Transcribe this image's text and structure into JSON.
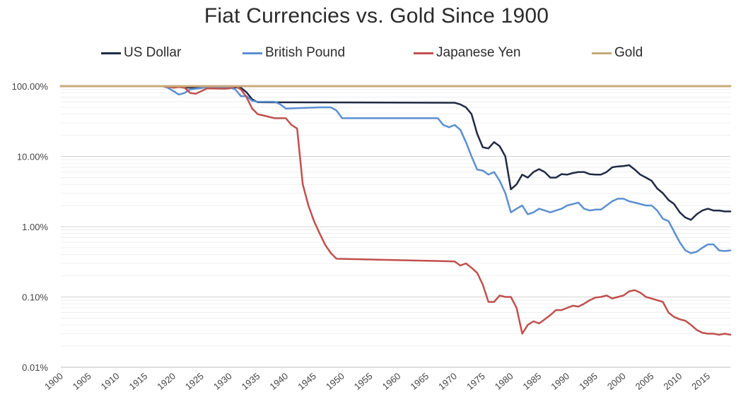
{
  "chart_data": {
    "type": "line",
    "title": "Fiat Currencies vs. Gold Since 1900",
    "xlabel": "",
    "ylabel": "",
    "y_scale": "log",
    "ylim": [
      0.01,
      100
    ],
    "xlim": [
      1900,
      2019
    ],
    "y_ticks": [
      {
        "value": 100,
        "label": "100.00%"
      },
      {
        "value": 10,
        "label": "10.00%"
      },
      {
        "value": 1,
        "label": "1.00%"
      },
      {
        "value": 0.1,
        "label": "0.10%"
      },
      {
        "value": 0.01,
        "label": "0.01%"
      }
    ],
    "x_ticks": [
      1900,
      1905,
      1910,
      1915,
      1920,
      1925,
      1930,
      1935,
      1940,
      1945,
      1950,
      1955,
      1960,
      1965,
      1970,
      1975,
      1980,
      1985,
      1990,
      1995,
      2000,
      2005,
      2010,
      2015
    ],
    "grid": "horizontal",
    "legend_position": "top",
    "series": [
      {
        "name": "US Dollar",
        "color": "#1f2a44",
        "x": [
          1900,
          1918,
          1919,
          1921,
          1922,
          1924,
          1926,
          1930,
          1932,
          1933,
          1934,
          1935,
          1970,
          1971,
          1972,
          1973,
          1974,
          1975,
          1976,
          1977,
          1978,
          1979,
          1980,
          1981,
          1982,
          1983,
          1984,
          1985,
          1986,
          1987,
          1988,
          1989,
          1990,
          1991,
          1992,
          1993,
          1994,
          1995,
          1996,
          1997,
          1998,
          1999,
          2000,
          2001,
          2002,
          2003,
          2004,
          2005,
          2006,
          2007,
          2008,
          2009,
          2010,
          2011,
          2012,
          2013,
          2014,
          2015,
          2016,
          2017,
          2018,
          2019
        ],
        "y": [
          100,
          100,
          100,
          98,
          95,
          96,
          97,
          97,
          95,
          82,
          65,
          59,
          58,
          55,
          50,
          40,
          21,
          13.5,
          13,
          16,
          14,
          10,
          3.4,
          4,
          5.5,
          5,
          6,
          6.6,
          6,
          5,
          5,
          5.6,
          5.5,
          5.8,
          6,
          6,
          5.6,
          5.5,
          5.5,
          6,
          7,
          7.2,
          7.3,
          7.5,
          6.5,
          5.5,
          5,
          4.5,
          3.5,
          3,
          2.4,
          2.1,
          1.6,
          1.35,
          1.25,
          1.5,
          1.7,
          1.8,
          1.7,
          1.7,
          1.65,
          1.65
        ]
      },
      {
        "name": "British Pound",
        "color": "#5b8fd1",
        "x": [
          1900,
          1918,
          1919,
          1920,
          1921,
          1922,
          1923,
          1924,
          1925,
          1926,
          1929,
          1930,
          1931,
          1932,
          1933,
          1934,
          1935,
          1938,
          1939,
          1940,
          1946,
          1948,
          1949,
          1950,
          1967,
          1968,
          1969,
          1970,
          1971,
          1972,
          1973,
          1974,
          1975,
          1976,
          1977,
          1978,
          1979,
          1980,
          1981,
          1982,
          1983,
          1984,
          1985,
          1986,
          1987,
          1988,
          1989,
          1990,
          1991,
          1992,
          1993,
          1994,
          1995,
          1996,
          1997,
          1998,
          1999,
          2000,
          2001,
          2002,
          2003,
          2004,
          2005,
          2006,
          2007,
          2008,
          2009,
          2010,
          2011,
          2012,
          2013,
          2014,
          2015,
          2016,
          2017,
          2018,
          2019
        ],
        "y": [
          100,
          100,
          95,
          85,
          76,
          80,
          90,
          92,
          94,
          97,
          97,
          96,
          90,
          72,
          72,
          62,
          60,
          60,
          55,
          48,
          50,
          50,
          45,
          35,
          35,
          28,
          26,
          28,
          24,
          16,
          10,
          6.5,
          6.3,
          5.5,
          6,
          4.5,
          3,
          1.6,
          1.8,
          2,
          1.5,
          1.6,
          1.8,
          1.7,
          1.6,
          1.7,
          1.8,
          2,
          2.1,
          2.2,
          1.8,
          1.7,
          1.75,
          1.75,
          2,
          2.3,
          2.5,
          2.5,
          2.3,
          2.2,
          2.1,
          2.0,
          2.0,
          1.7,
          1.3,
          1.2,
          0.85,
          0.6,
          0.46,
          0.42,
          0.44,
          0.5,
          0.56,
          0.56,
          0.46,
          0.45,
          0.46
        ]
      },
      {
        "name": "Japanese Yen",
        "color": "#c0504d",
        "x": [
          1900,
          1917,
          1918,
          1919,
          1920,
          1921,
          1922,
          1923,
          1924,
          1925,
          1926,
          1929,
          1930,
          1931,
          1932,
          1933,
          1934,
          1935,
          1938,
          1940,
          1941,
          1942,
          1943,
          1944,
          1945,
          1946,
          1947,
          1948,
          1949,
          1970,
          1971,
          1972,
          1973,
          1974,
          1975,
          1976,
          1977,
          1978,
          1979,
          1980,
          1981,
          1982,
          1983,
          1984,
          1985,
          1986,
          1987,
          1988,
          1989,
          1990,
          1991,
          1992,
          1993,
          1994,
          1995,
          1996,
          1997,
          1998,
          1999,
          2000,
          2001,
          2002,
          2003,
          2004,
          2005,
          2006,
          2007,
          2008,
          2009,
          2010,
          2011,
          2012,
          2013,
          2014,
          2015,
          2016,
          2017,
          2018,
          2019
        ],
        "y": [
          100,
          100,
          100,
          98,
          95,
          97,
          95,
          80,
          78,
          85,
          93,
          92,
          93,
          100,
          90,
          70,
          48,
          40,
          35,
          35,
          28,
          25,
          4.0,
          2.0,
          1.2,
          0.8,
          0.55,
          0.42,
          0.35,
          0.32,
          0.28,
          0.3,
          0.26,
          0.22,
          0.15,
          0.085,
          0.085,
          0.105,
          0.1,
          0.1,
          0.07,
          0.03,
          0.04,
          0.045,
          0.042,
          0.048,
          0.055,
          0.065,
          0.065,
          0.07,
          0.075,
          0.073,
          0.08,
          0.09,
          0.098,
          0.1,
          0.105,
          0.095,
          0.1,
          0.105,
          0.12,
          0.125,
          0.115,
          0.1,
          0.095,
          0.09,
          0.085,
          0.06,
          0.052,
          0.048,
          0.046,
          0.04,
          0.034,
          0.031,
          0.03,
          0.03,
          0.029,
          0.03,
          0.029
        ]
      },
      {
        "name": "Gold",
        "color": "#c9a979",
        "x": [
          1900,
          2019
        ],
        "y": [
          100,
          100
        ]
      }
    ]
  }
}
